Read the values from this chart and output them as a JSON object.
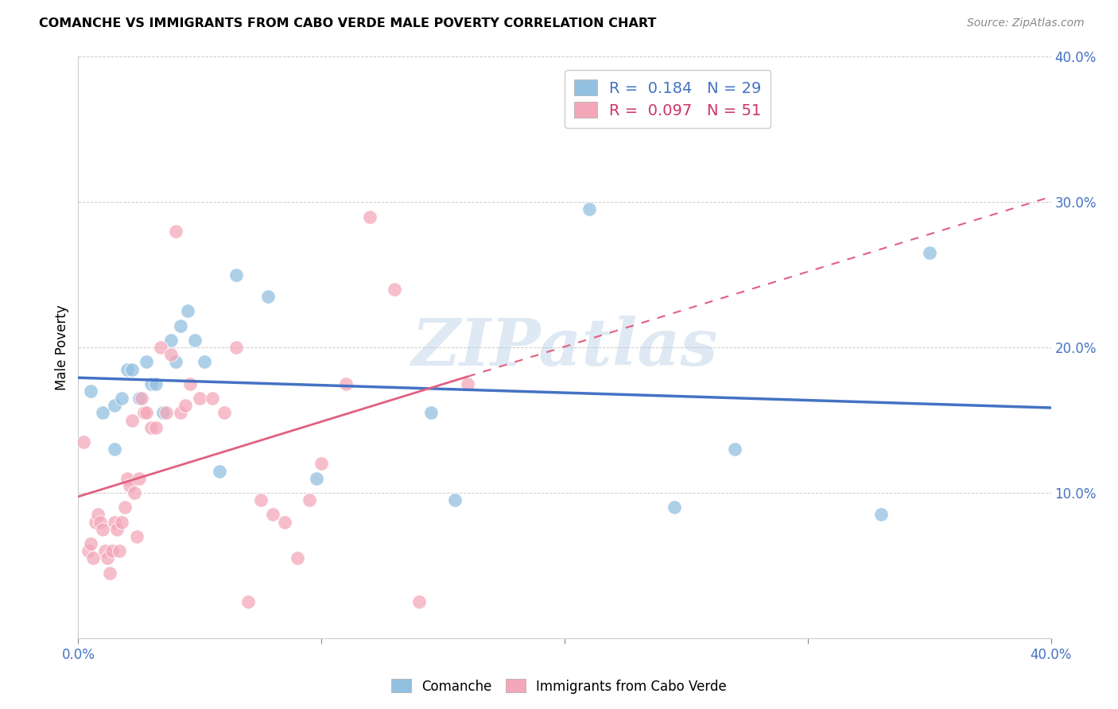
{
  "title": "COMANCHE VS IMMIGRANTS FROM CABO VERDE MALE POVERTY CORRELATION CHART",
  "source": "Source: ZipAtlas.com",
  "ylabel": "Male Poverty",
  "watermark": "ZIPatlas",
  "xlim": [
    0.0,
    0.4
  ],
  "ylim": [
    0.0,
    0.4
  ],
  "xticks": [
    0.0,
    0.1,
    0.2,
    0.3,
    0.4
  ],
  "yticks": [
    0.0,
    0.1,
    0.2,
    0.3,
    0.4
  ],
  "xtick_labels": [
    "0.0%",
    "",
    "",
    "",
    "40.0%"
  ],
  "ytick_labels": [
    "",
    "10.0%",
    "20.0%",
    "30.0%",
    "40.0%"
  ],
  "blue_color": "#92c0e0",
  "pink_color": "#f4a7b9",
  "blue_line_color": "#4472c4",
  "pink_line_color": "#e06080",
  "series1_label": "Comanche",
  "series2_label": "Immigrants from Cabo Verde",
  "R1": 0.184,
  "N1": 29,
  "R2": 0.097,
  "N2": 51,
  "blue_x": [
    0.005,
    0.01,
    0.015,
    0.015,
    0.018,
    0.02,
    0.022,
    0.025,
    0.028,
    0.03,
    0.032,
    0.035,
    0.038,
    0.04,
    0.042,
    0.045,
    0.048,
    0.052,
    0.058,
    0.065,
    0.078,
    0.098,
    0.145,
    0.155,
    0.21,
    0.245,
    0.27,
    0.33,
    0.35
  ],
  "blue_y": [
    0.17,
    0.155,
    0.16,
    0.13,
    0.165,
    0.185,
    0.185,
    0.165,
    0.19,
    0.175,
    0.175,
    0.155,
    0.205,
    0.19,
    0.215,
    0.225,
    0.205,
    0.19,
    0.115,
    0.25,
    0.235,
    0.11,
    0.155,
    0.095,
    0.295,
    0.09,
    0.13,
    0.085,
    0.265
  ],
  "pink_x": [
    0.002,
    0.004,
    0.005,
    0.006,
    0.007,
    0.008,
    0.009,
    0.01,
    0.011,
    0.012,
    0.013,
    0.014,
    0.015,
    0.016,
    0.017,
    0.018,
    0.019,
    0.02,
    0.021,
    0.022,
    0.023,
    0.024,
    0.025,
    0.026,
    0.027,
    0.028,
    0.03,
    0.032,
    0.034,
    0.036,
    0.038,
    0.04,
    0.042,
    0.044,
    0.046,
    0.05,
    0.055,
    0.06,
    0.065,
    0.07,
    0.075,
    0.08,
    0.085,
    0.09,
    0.095,
    0.1,
    0.11,
    0.12,
    0.13,
    0.14,
    0.16
  ],
  "pink_y": [
    0.135,
    0.06,
    0.065,
    0.055,
    0.08,
    0.085,
    0.08,
    0.075,
    0.06,
    0.055,
    0.045,
    0.06,
    0.08,
    0.075,
    0.06,
    0.08,
    0.09,
    0.11,
    0.105,
    0.15,
    0.1,
    0.07,
    0.11,
    0.165,
    0.155,
    0.155,
    0.145,
    0.145,
    0.2,
    0.155,
    0.195,
    0.28,
    0.155,
    0.16,
    0.175,
    0.165,
    0.165,
    0.155,
    0.2,
    0.025,
    0.095,
    0.085,
    0.08,
    0.055,
    0.095,
    0.12,
    0.175,
    0.29,
    0.24,
    0.025,
    0.175
  ]
}
